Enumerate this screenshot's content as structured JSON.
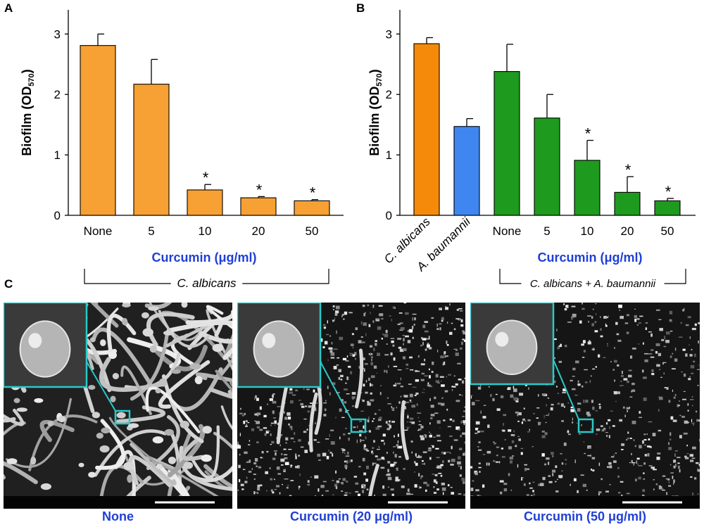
{
  "panels": {
    "a": {
      "letter": "A"
    },
    "b": {
      "letter": "B"
    },
    "c": {
      "letter": "C"
    }
  },
  "colors": {
    "orange": "#f7a033",
    "deep_orange": "#f58a0a",
    "blue": "#3f86f0",
    "green": "#1e9a1e",
    "caption_blue": "#1f3fd6",
    "inset_border": "#2ac9c9"
  },
  "chart_data": [
    {
      "type": "bar",
      "ylabel_main": "Biofilm (OD",
      "ylabel_sub": "570",
      "ylabel_end": ")",
      "yticks": [
        "0",
        "1",
        "2",
        "3"
      ],
      "ylim": [
        0,
        3.4
      ],
      "categories": [
        "None",
        "5",
        "10",
        "20",
        "50"
      ],
      "values": [
        2.81,
        2.17,
        0.42,
        0.29,
        0.24
      ],
      "errors": [
        0.19,
        0.41,
        0.09,
        0.02,
        0.02
      ],
      "significance": [
        "",
        "",
        "*",
        "*",
        "*"
      ],
      "bar_colors": [
        "orange",
        "orange",
        "orange",
        "orange",
        "orange"
      ],
      "group_label": "Curcumin (μg/ml)",
      "bracket_label": "C. albicans"
    },
    {
      "type": "bar",
      "ylabel_main": "Biofilm (OD",
      "ylabel_sub": "570",
      "ylabel_end": ")",
      "yticks": [
        "0",
        "1",
        "2",
        "3"
      ],
      "ylim": [
        0,
        3.4
      ],
      "categories": [
        "C. albicans",
        "A. baumannii",
        "None",
        "5",
        "10",
        "20",
        "50"
      ],
      "values": [
        2.84,
        1.47,
        2.38,
        1.61,
        0.91,
        0.38,
        0.24
      ],
      "errors": [
        0.1,
        0.13,
        0.45,
        0.39,
        0.33,
        0.26,
        0.04
      ],
      "significance": [
        "",
        "",
        "",
        "",
        "*",
        "*",
        "*"
      ],
      "bar_colors": [
        "deep_orange",
        "blue",
        "green",
        "green",
        "green",
        "green",
        "green"
      ],
      "group_label": "Curcumin (μg/ml)",
      "bracket_label": "C. albicans + A. baumannii"
    }
  ],
  "micrographs": [
    {
      "caption": "None"
    },
    {
      "caption": "Curcumin (20 μg/ml)"
    },
    {
      "caption": "Curcumin (50 μg/ml)"
    }
  ]
}
